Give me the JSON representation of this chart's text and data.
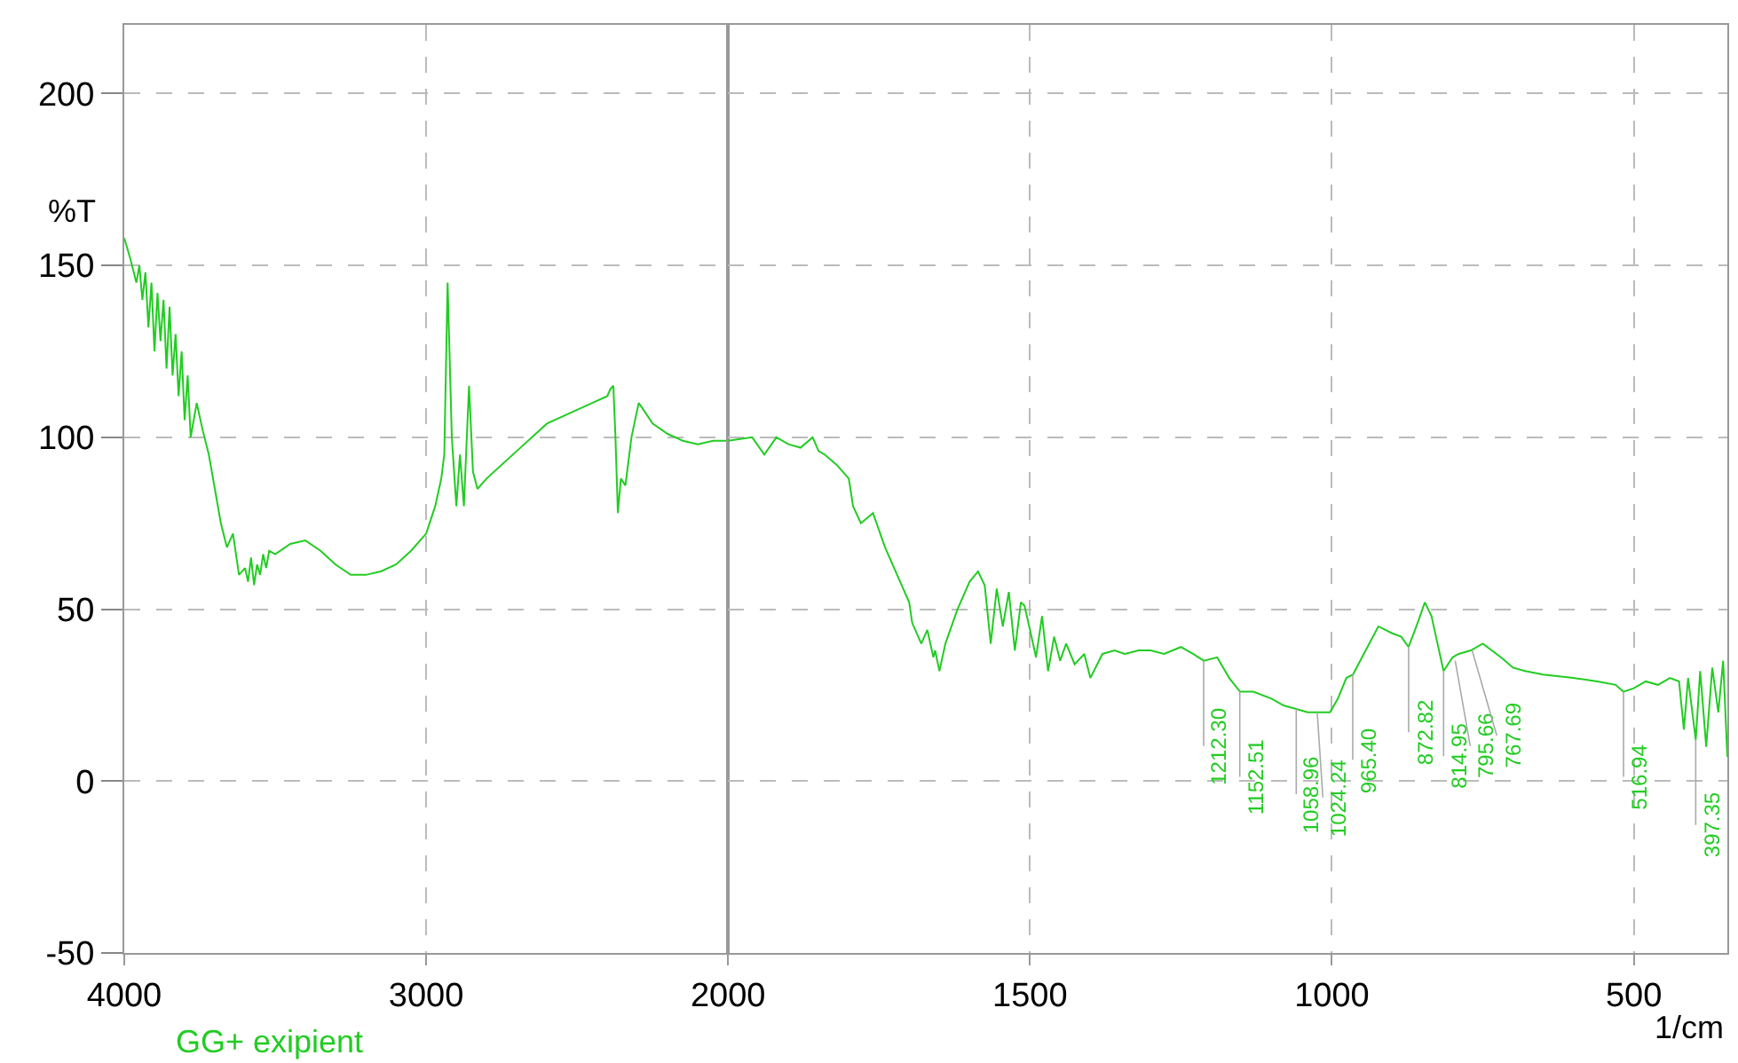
{
  "chart_data": [
    {
      "type": "line",
      "xlim": [
        4000,
        2000
      ],
      "xticks": [
        4000,
        3000
      ],
      "ylim": [
        -50,
        220
      ],
      "yticks": [
        200,
        150,
        100,
        50,
        0,
        -50
      ],
      "ylabel": "%T",
      "grid": true,
      "marker": "none",
      "line_style": "solid",
      "annotations": [
        "GG+ exipient"
      ],
      "series": [
        {
          "color": "#22cc22",
          "x": [
            4000,
            3980,
            3960,
            3950,
            3940,
            3930,
            3920,
            3910,
            3900,
            3890,
            3880,
            3870,
            3860,
            3850,
            3840,
            3830,
            3820,
            3810,
            3800,
            3790,
            3780,
            3760,
            3740,
            3720,
            3700,
            3680,
            3660,
            3640,
            3620,
            3600,
            3590,
            3580,
            3570,
            3560,
            3550,
            3540,
            3530,
            3520,
            3500,
            3450,
            3400,
            3350,
            3300,
            3250,
            3200,
            3150,
            3100,
            3050,
            3000,
            2970,
            2950,
            2940,
            2929,
            2915,
            2900,
            2888,
            2875,
            2858,
            2845,
            2830,
            2800,
            2700,
            2600,
            2500,
            2450,
            2400,
            2390,
            2380,
            2373,
            2365,
            2355,
            2340,
            2320,
            2296,
            2280,
            2250,
            2200,
            2150,
            2100,
            2050,
            2000
          ],
          "values": [
            158,
            152,
            145,
            150,
            140,
            148,
            132,
            145,
            125,
            142,
            128,
            140,
            120,
            138,
            118,
            130,
            112,
            125,
            105,
            118,
            100,
            110,
            102,
            95,
            85,
            75,
            68,
            72,
            60,
            62,
            58,
            65,
            57,
            63,
            60,
            66,
            62,
            67,
            66,
            69,
            70,
            67,
            63,
            60,
            60,
            61,
            63,
            67,
            72,
            80,
            88,
            95,
            145,
            100,
            80,
            95,
            80,
            115,
            90,
            85,
            88,
            96,
            104,
            108,
            110,
            112,
            114,
            115,
            100,
            78,
            88,
            86,
            100,
            110,
            108,
            104,
            101,
            99,
            98,
            99,
            99
          ]
        }
      ]
    },
    {
      "type": "line",
      "xlim": [
        2000,
        345
      ],
      "xticks": [
        2000,
        1500,
        1000,
        500
      ],
      "ylim": [
        -50,
        220
      ],
      "yticks": [
        200,
        150,
        100,
        50,
        0,
        -50
      ],
      "xlabel": "1/cm",
      "grid": true,
      "marker": "none",
      "line_style": "solid",
      "tick_labels": "x",
      "annotations": [
        {
          "text": "1212.30",
          "x": 1212.3,
          "y": 35
        },
        {
          "text": "1152.51",
          "x": 1152.51,
          "y": 26
        },
        {
          "text": "1058.96",
          "x": 1058.96,
          "y": 21
        },
        {
          "text": "1024.24",
          "x": 1024.24,
          "y": 20
        },
        {
          "text": "965.40",
          "x": 965.4,
          "y": 31
        },
        {
          "text": "872.82",
          "x": 872.82,
          "y": 39
        },
        {
          "text": "814.95",
          "x": 814.95,
          "y": 32
        },
        {
          "text": "795.66",
          "x": 795.66,
          "y": 35
        },
        {
          "text": "767.69",
          "x": 767.69,
          "y": 38
        },
        {
          "text": "516.94",
          "x": 516.94,
          "y": 26
        },
        {
          "text": "397.35",
          "x": 397.35,
          "y": 12
        }
      ],
      "series": [
        {
          "color": "#22cc22",
          "x": [
            2000,
            1960,
            1940,
            1920,
            1900,
            1880,
            1860,
            1850,
            1840,
            1820,
            1800,
            1793,
            1780,
            1760,
            1740,
            1720,
            1700,
            1695,
            1680,
            1670,
            1660,
            1657,
            1650,
            1640,
            1620,
            1600,
            1586,
            1575,
            1565,
            1555,
            1545,
            1535,
            1525,
            1515,
            1509,
            1500,
            1490,
            1480,
            1470,
            1460,
            1450,
            1440,
            1426,
            1410,
            1400,
            1380,
            1360,
            1343,
            1320,
            1300,
            1278,
            1250,
            1230,
            1212,
            1190,
            1170,
            1152,
            1130,
            1100,
            1080,
            1059,
            1040,
            1024,
            1003,
            990,
            976,
            965,
            950,
            923,
            900,
            885,
            873,
            860,
            846,
            835,
            825,
            815,
            800,
            790,
            770,
            750,
            720,
            700,
            680,
            650,
            600,
            560,
            530,
            517,
            500,
            480,
            460,
            440,
            425,
            417,
            410,
            397.35,
            390,
            380,
            370,
            360,
            352,
            345
          ],
          "values": [
            99,
            100,
            95,
            100,
            98,
            97,
            100,
            96,
            95,
            92,
            88,
            80,
            75,
            78,
            68,
            60,
            52,
            46,
            40,
            44,
            36,
            38,
            32,
            40,
            50,
            58,
            61,
            57,
            40,
            56,
            45,
            55,
            38,
            52,
            51,
            44,
            36,
            48,
            32,
            42,
            35,
            40,
            34,
            37,
            30,
            37,
            38,
            37,
            38,
            38,
            37,
            39,
            37,
            35,
            36,
            30,
            26,
            26,
            24,
            22,
            21,
            20,
            20,
            20,
            24,
            30,
            31,
            36,
            45,
            43,
            42,
            39,
            45,
            52,
            48,
            40,
            32,
            36,
            37,
            38,
            40,
            36,
            33,
            32,
            31,
            30,
            29,
            28,
            26,
            27,
            29,
            28,
            30,
            29,
            15,
            30,
            12,
            32,
            10,
            33,
            20,
            35,
            7
          ]
        }
      ]
    }
  ]
}
